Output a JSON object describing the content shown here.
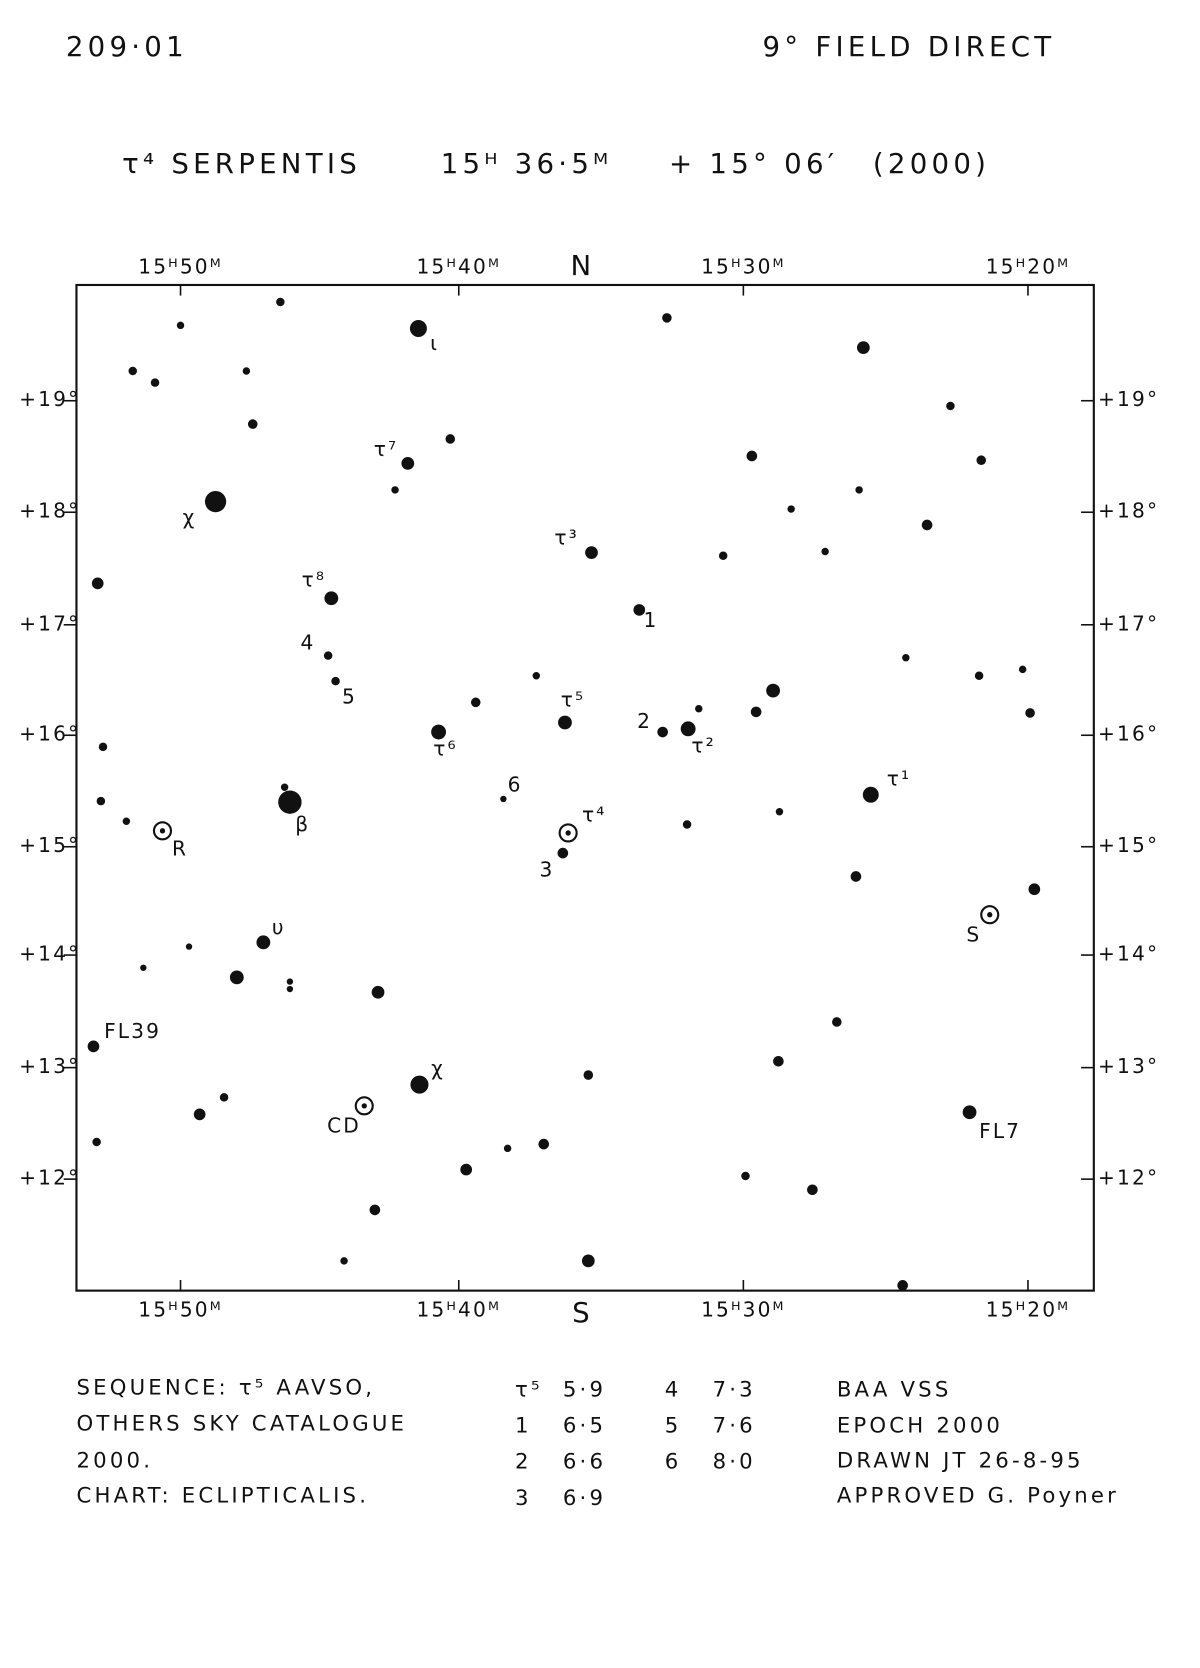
{
  "header": {
    "catalog": "209·01",
    "field": "9° FIELD DIRECT"
  },
  "title": {
    "star": "τ⁴ SERPENTIS",
    "ra": "15ᴴ 36·5ᴹ",
    "dec": "+ 15° 06′",
    "epoch": "(2000)"
  },
  "axes": {
    "north": "N",
    "south": "S",
    "ra_labels": [
      "15ᴴ50ᴹ",
      "15ᴴ40ᴹ",
      "15ᴴ30ᴹ",
      "15ᴴ20ᴹ"
    ],
    "dec_labels": [
      "+19°",
      "+18°",
      "+17°",
      "+16°",
      "+15°",
      "+14°",
      "+13°",
      "+12°"
    ]
  },
  "star_labels": [
    "ι",
    "τ⁷",
    "χ",
    "τ³",
    "τ⁸",
    "1",
    "4",
    "5",
    "τ⁵",
    "2",
    "τ⁶",
    "τ²",
    "6",
    "τ⁴",
    "τ¹",
    "β",
    "R",
    "3",
    "S",
    "υ",
    "FL39",
    "χ",
    "CD",
    "FL7"
  ],
  "footer": {
    "notes": [
      "SEQUENCE:  τ⁵ AAVSO,",
      "OTHERS  SKY CATALOGUE",
      "2000.",
      "CHART:  ECLIPTICALIS."
    ],
    "sequence": [
      [
        "τ⁵",
        "5·9"
      ],
      [
        "1",
        "6·5"
      ],
      [
        "2",
        "6·6"
      ],
      [
        "3",
        "6·9"
      ],
      [
        "4",
        "7·3"
      ],
      [
        "5",
        "7·6"
      ],
      [
        "6",
        "8·0"
      ]
    ],
    "credits": [
      "BAA  VSS",
      "EPOCH  2000",
      "DRAWN  JT 26-8-95",
      "APPROVED  G. Poyner"
    ]
  }
}
